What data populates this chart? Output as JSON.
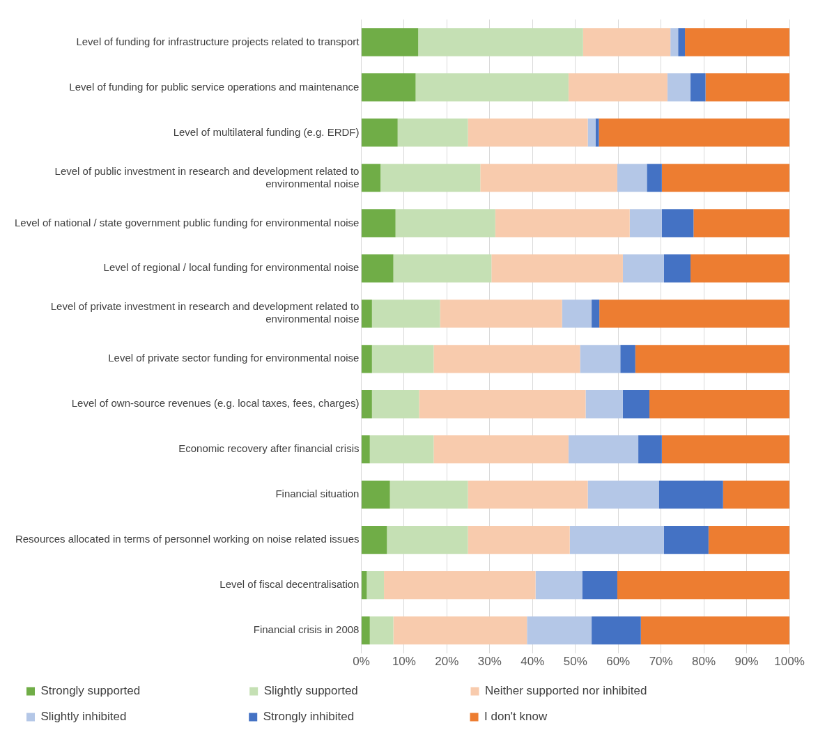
{
  "chart_data": {
    "type": "bar",
    "orientation": "horizontal",
    "stacked": true,
    "categories": [
      "Level of funding for infrastructure projects related to transport",
      "Level of funding for public service operations and maintenance",
      "Level of multilateral funding (e.g. ERDF)",
      "Level of public investment in research and development related to environmental noise",
      "Level of national / state government public funding for environmental noise",
      "Level of regional / local funding for environmental noise",
      "Level of private investment in research and development related to environmental noise",
      "Level of private sector funding for environmental noise",
      "Level of own-source revenues (e.g. local taxes, fees, charges)",
      "Economic recovery after financial crisis",
      "Financial situation",
      "Resources allocated in terms of personnel working on noise related issues",
      "Level of fiscal decentralisation",
      "Financial crisis in 2008"
    ],
    "series": [
      {
        "name": "Strongly supported",
        "color": "#70ad47",
        "values": [
          13.3,
          12.7,
          8.5,
          4.5,
          8.0,
          7.5,
          2.5,
          2.5,
          2.5,
          2.0,
          6.7,
          6.0,
          1.3,
          2.0
        ]
      },
      {
        "name": "Slightly supported",
        "color": "#c5e0b4",
        "values": [
          38.5,
          35.7,
          16.4,
          23.3,
          23.3,
          22.9,
          15.9,
          14.4,
          11.0,
          14.9,
          18.2,
          18.9,
          4.0,
          5.5
        ]
      },
      {
        "name": "Neither supported nor inhibited",
        "color": "#f8cbad",
        "values": [
          20.4,
          23.1,
          28.0,
          32.0,
          31.4,
          30.7,
          28.5,
          34.2,
          38.9,
          31.5,
          28.0,
          23.8,
          35.4,
          31.2
        ]
      },
      {
        "name": "Slightly inhibited",
        "color": "#b4c7e7",
        "values": [
          1.8,
          5.4,
          1.8,
          6.9,
          7.5,
          9.6,
          6.9,
          9.4,
          8.7,
          16.3,
          16.6,
          22.0,
          10.9,
          15.1
        ]
      },
      {
        "name": "Strongly inhibited",
        "color": "#4472c4",
        "values": [
          1.6,
          3.5,
          0.8,
          3.5,
          7.4,
          6.2,
          1.8,
          3.5,
          6.2,
          5.5,
          15.0,
          10.4,
          8.2,
          11.5
        ]
      },
      {
        "name": "I don't know",
        "color": "#ed7d31",
        "values": [
          24.4,
          19.6,
          44.5,
          29.8,
          22.4,
          23.1,
          44.4,
          36.0,
          32.7,
          29.8,
          15.5,
          18.9,
          40.2,
          34.7
        ]
      }
    ],
    "xlim": [
      0,
      100
    ],
    "xticks": [
      {
        "value": 0,
        "label": "0%"
      },
      {
        "value": 10,
        "label": "10%"
      },
      {
        "value": 20,
        "label": "20%"
      },
      {
        "value": 30,
        "label": "30%"
      },
      {
        "value": 40,
        "label": "40%"
      },
      {
        "value": 50,
        "label": "50%"
      },
      {
        "value": 60,
        "label": "60%"
      },
      {
        "value": 70,
        "label": "70%"
      },
      {
        "value": 80,
        "label": "80%"
      },
      {
        "value": 90,
        "label": "90%"
      },
      {
        "value": 100,
        "label": "100%"
      }
    ],
    "grid": "x",
    "legend": "bottom"
  }
}
